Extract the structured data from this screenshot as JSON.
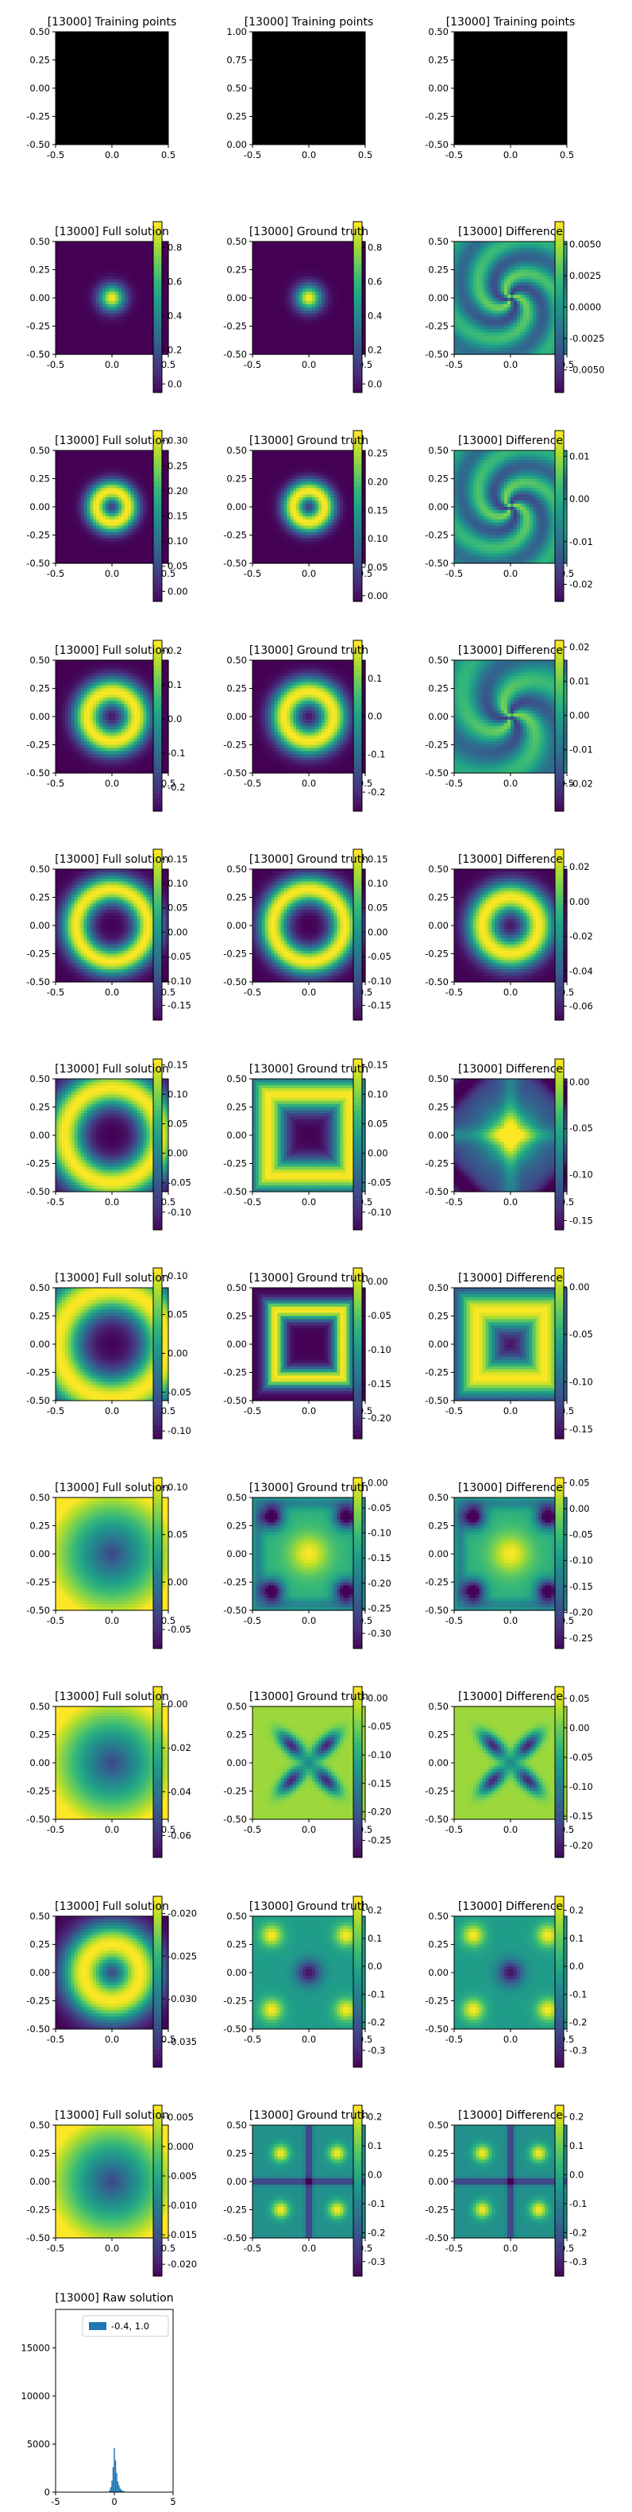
{
  "figure": {
    "background": "#ffffff",
    "colormap": "viridis",
    "training_fill": "#000000"
  },
  "chart_data": [
    {
      "type": "image",
      "title": "[13000] Training points",
      "xlim": [
        -0.5,
        0.5
      ],
      "ylim": [
        -0.5,
        0.5
      ],
      "xticks": [
        "-0.5",
        "0.0",
        "0.5"
      ],
      "yticks": [
        "0.50",
        "0.25",
        "0.00",
        "-0.25",
        "-0.50"
      ],
      "fill": "black"
    },
    {
      "type": "image",
      "title": "[13000] Training points",
      "xlim": [
        -0.5,
        0.5
      ],
      "ylim": [
        0.0,
        1.0
      ],
      "xticks": [
        "-0.5",
        "0.0",
        "0.5"
      ],
      "yticks": [
        "1.00",
        "0.75",
        "0.50",
        "0.25",
        "0.00"
      ],
      "fill": "black"
    },
    {
      "type": "image",
      "title": "[13000] Training points",
      "xlim": [
        -0.5,
        0.5
      ],
      "ylim": [
        -0.5,
        0.5
      ],
      "xticks": [
        "-0.5",
        "0.0",
        "0.5"
      ],
      "yticks": [
        "0.50",
        "0.25",
        "0.00",
        "-0.25",
        "-0.50"
      ],
      "fill": "black"
    },
    {
      "type": "heatmap",
      "title": "[13000] Full solution",
      "xticks": [
        "-0.5",
        "0.0",
        "0.5"
      ],
      "yticks": [
        "0.50",
        "0.25",
        "0.00",
        "-0.25",
        "-0.50"
      ],
      "colorbar": {
        "ticks": [
          "0.8",
          "0.6",
          "0.4",
          "0.2",
          "0.0"
        ],
        "min": -0.05,
        "max": 0.95
      },
      "pattern": {
        "kind": "gauss",
        "width": 0.08
      }
    },
    {
      "type": "heatmap",
      "title": "[13000] Ground truth",
      "xticks": [
        "-0.5",
        "0.0",
        "0.5"
      ],
      "yticks": [
        "0.50",
        "0.25",
        "0.00",
        "-0.25",
        "-0.50"
      ],
      "colorbar": {
        "ticks": [
          "0.8",
          "0.6",
          "0.4",
          "0.2",
          "0.0"
        ],
        "min": -0.05,
        "max": 0.95
      },
      "pattern": {
        "kind": "gauss",
        "width": 0.08
      }
    },
    {
      "type": "heatmap",
      "title": "[13000] Difference",
      "xticks": [
        "-0.5",
        "0.0",
        "0.5"
      ],
      "yticks": [
        "0.50",
        "0.25",
        "0.00",
        "-0.25",
        "-0.50"
      ],
      "colorbar": {
        "ticks": [
          "0.0050",
          "0.0025",
          "0.0000",
          "-0.0025",
          "-0.0050"
        ],
        "min": -0.0068,
        "max": 0.0068
      },
      "pattern": {
        "kind": "wavy",
        "rings": 3
      }
    },
    {
      "type": "heatmap",
      "title": "[13000] Full solution",
      "xticks": [
        "-0.5",
        "0.0",
        "0.5"
      ],
      "yticks": [
        "0.50",
        "0.25",
        "0.00",
        "-0.25",
        "-0.50"
      ],
      "colorbar": {
        "ticks": [
          "0.30",
          "0.25",
          "0.20",
          "0.15",
          "0.10",
          "0.05",
          "0.00"
        ],
        "min": -0.02,
        "max": 0.32
      },
      "pattern": {
        "kind": "ring",
        "r": 0.14,
        "w": 0.07
      }
    },
    {
      "type": "heatmap",
      "title": "[13000] Ground truth",
      "xticks": [
        "-0.5",
        "0.0",
        "0.5"
      ],
      "yticks": [
        "0.50",
        "0.25",
        "0.00",
        "-0.25",
        "-0.50"
      ],
      "colorbar": {
        "ticks": [
          "0.25",
          "0.20",
          "0.15",
          "0.10",
          "0.05",
          "0.00"
        ],
        "min": -0.01,
        "max": 0.29
      },
      "pattern": {
        "kind": "ring",
        "r": 0.14,
        "w": 0.07
      }
    },
    {
      "type": "heatmap",
      "title": "[13000] Difference",
      "xticks": [
        "-0.5",
        "0.0",
        "0.5"
      ],
      "yticks": [
        "0.50",
        "0.25",
        "0.00",
        "-0.25",
        "-0.50"
      ],
      "colorbar": {
        "ticks": [
          "0.01",
          "0.00",
          "-0.01",
          "-0.02"
        ],
        "min": -0.024,
        "max": 0.016
      },
      "pattern": {
        "kind": "wavy",
        "rings": 3
      }
    },
    {
      "type": "heatmap",
      "title": "[13000] Full solution",
      "xticks": [
        "-0.5",
        "0.0",
        "0.5"
      ],
      "yticks": [
        "0.50",
        "0.25",
        "0.00",
        "-0.25",
        "-0.50"
      ],
      "colorbar": {
        "ticks": [
          "0.2",
          "0.1",
          "0.0",
          "-0.1",
          "-0.2"
        ],
        "min": -0.27,
        "max": 0.23
      },
      "pattern": {
        "kind": "ring",
        "r": 0.22,
        "w": 0.09
      }
    },
    {
      "type": "heatmap",
      "title": "[13000] Ground truth",
      "xticks": [
        "-0.5",
        "0.0",
        "0.5"
      ],
      "yticks": [
        "0.50",
        "0.25",
        "0.00",
        "-0.25",
        "-0.50"
      ],
      "colorbar": {
        "ticks": [
          "0.1",
          "0.0",
          "-0.1",
          "-0.2"
        ],
        "min": -0.25,
        "max": 0.2
      },
      "pattern": {
        "kind": "ring",
        "r": 0.22,
        "w": 0.09
      }
    },
    {
      "type": "heatmap",
      "title": "[13000] Difference",
      "xticks": [
        "-0.5",
        "0.0",
        "0.5"
      ],
      "yticks": [
        "0.50",
        "0.25",
        "0.00",
        "-0.25",
        "-0.50"
      ],
      "colorbar": {
        "ticks": [
          "0.02",
          "0.01",
          "0.00",
          "-0.01",
          "-0.02"
        ],
        "min": -0.028,
        "max": 0.022
      },
      "pattern": {
        "kind": "wavy",
        "rings": 2
      }
    },
    {
      "type": "heatmap",
      "title": "[13000] Full solution",
      "xticks": [
        "-0.5",
        "0.0",
        "0.5"
      ],
      "yticks": [
        "0.50",
        "0.25",
        "0.00",
        "-0.25",
        "-0.50"
      ],
      "colorbar": {
        "ticks": [
          "0.15",
          "0.10",
          "0.05",
          "0.00",
          "-0.05",
          "-0.10",
          "-0.15"
        ],
        "min": -0.18,
        "max": 0.17
      },
      "pattern": {
        "kind": "ring",
        "r": 0.32,
        "w": 0.09
      }
    },
    {
      "type": "heatmap",
      "title": "[13000] Ground truth",
      "xticks": [
        "-0.5",
        "0.0",
        "0.5"
      ],
      "yticks": [
        "0.50",
        "0.25",
        "0.00",
        "-0.25",
        "-0.50"
      ],
      "colorbar": {
        "ticks": [
          "0.15",
          "0.10",
          "0.05",
          "0.00",
          "-0.05",
          "-0.10",
          "-0.15"
        ],
        "min": -0.18,
        "max": 0.17
      },
      "pattern": {
        "kind": "ring",
        "r": 0.32,
        "w": 0.09
      }
    },
    {
      "type": "heatmap",
      "title": "[13000] Difference",
      "xticks": [
        "-0.5",
        "0.0",
        "0.5"
      ],
      "yticks": [
        "0.50",
        "0.25",
        "0.00",
        "-0.25",
        "-0.50"
      ],
      "colorbar": {
        "ticks": [
          "0.02",
          "0.00",
          "-0.02",
          "-0.04",
          "-0.06"
        ],
        "min": -0.068,
        "max": 0.03
      },
      "pattern": {
        "kind": "ring",
        "r": 0.25,
        "w": 0.1
      }
    },
    {
      "type": "heatmap",
      "title": "[13000] Full solution",
      "xticks": [
        "-0.5",
        "0.0",
        "0.5"
      ],
      "yticks": [
        "0.50",
        "0.25",
        "0.00",
        "-0.25",
        "-0.50"
      ],
      "colorbar": {
        "ticks": [
          "0.15",
          "0.10",
          "0.05",
          "0.00",
          "-0.05",
          "-0.10"
        ],
        "min": -0.13,
        "max": 0.16
      },
      "pattern": {
        "kind": "ring",
        "r": 0.42,
        "w": 0.12
      }
    },
    {
      "type": "heatmap",
      "title": "[13000] Ground truth",
      "xticks": [
        "-0.5",
        "0.0",
        "0.5"
      ],
      "yticks": [
        "0.50",
        "0.25",
        "0.00",
        "-0.25",
        "-0.50"
      ],
      "colorbar": {
        "ticks": [
          "0.15",
          "0.10",
          "0.05",
          "0.00",
          "-0.05",
          "-0.10"
        ],
        "min": -0.13,
        "max": 0.16
      },
      "pattern": {
        "kind": "squarering",
        "r": 0.36,
        "w": 0.1
      }
    },
    {
      "type": "heatmap",
      "title": "[13000] Difference",
      "xticks": [
        "-0.5",
        "0.0",
        "0.5"
      ],
      "yticks": [
        "0.50",
        "0.25",
        "0.00",
        "-0.25",
        "-0.50"
      ],
      "colorbar": {
        "ticks": [
          "0.00",
          "-0.05",
          "-0.10",
          "-0.15"
        ],
        "min": -0.16,
        "max": 0.025
      },
      "pattern": {
        "kind": "cross"
      }
    },
    {
      "type": "heatmap",
      "title": "[13000] Full solution",
      "xticks": [
        "-0.5",
        "0.0",
        "0.5"
      ],
      "yticks": [
        "0.50",
        "0.25",
        "0.00",
        "-0.25",
        "-0.50"
      ],
      "colorbar": {
        "ticks": [
          "0.10",
          "0.05",
          "0.00",
          "-0.05",
          "-0.10"
        ],
        "min": -0.11,
        "max": 0.11
      },
      "pattern": {
        "kind": "ring",
        "r": 0.48,
        "w": 0.15
      }
    },
    {
      "type": "heatmap",
      "title": "[13000] Ground truth",
      "xticks": [
        "-0.5",
        "0.0",
        "0.5"
      ],
      "yticks": [
        "0.50",
        "0.25",
        "0.00",
        "-0.25",
        "-0.50"
      ],
      "colorbar": {
        "ticks": [
          "0.00",
          "-0.05",
          "-0.10",
          "-0.15",
          "-0.20"
        ],
        "min": -0.23,
        "max": 0.02
      },
      "pattern": {
        "kind": "squarering",
        "r": 0.3,
        "w": 0.06
      }
    },
    {
      "type": "heatmap",
      "title": "[13000] Difference",
      "xticks": [
        "-0.5",
        "0.0",
        "0.5"
      ],
      "yticks": [
        "0.50",
        "0.25",
        "0.00",
        "-0.25",
        "-0.50"
      ],
      "colorbar": {
        "ticks": [
          "0.00",
          "-0.05",
          "-0.10",
          "-0.15"
        ],
        "min": -0.16,
        "max": 0.02
      },
      "pattern": {
        "kind": "squarering",
        "r": 0.3,
        "w": 0.12
      }
    },
    {
      "type": "heatmap",
      "title": "[13000] Full solution",
      "xticks": [
        "-0.5",
        "0.0",
        "0.5"
      ],
      "yticks": [
        "0.50",
        "0.25",
        "0.00",
        "-0.25",
        "-0.50"
      ],
      "colorbar": {
        "ticks": [
          "0.10",
          "0.05",
          "0.00",
          "-0.05"
        ],
        "min": -0.07,
        "max": 0.11
      },
      "pattern": {
        "kind": "radial"
      }
    },
    {
      "type": "heatmap",
      "title": "[13000] Ground truth",
      "xticks": [
        "-0.5",
        "0.0",
        "0.5"
      ],
      "yticks": [
        "0.50",
        "0.25",
        "0.00",
        "-0.25",
        "-0.50"
      ],
      "colorbar": {
        "ticks": [
          "0.00",
          "-0.05",
          "-0.10",
          "-0.15",
          "-0.20",
          "-0.25",
          "-0.30"
        ],
        "min": -0.33,
        "max": 0.01
      },
      "pattern": {
        "kind": "corners"
      }
    },
    {
      "type": "heatmap",
      "title": "[13000] Difference",
      "xticks": [
        "-0.5",
        "0.0",
        "0.5"
      ],
      "yticks": [
        "0.50",
        "0.25",
        "0.00",
        "-0.25",
        "-0.50"
      ],
      "colorbar": {
        "ticks": [
          "0.05",
          "0.00",
          "-0.05",
          "-0.10",
          "-0.15",
          "-0.20",
          "-0.25"
        ],
        "min": -0.27,
        "max": 0.06
      },
      "pattern": {
        "kind": "corners"
      }
    },
    {
      "type": "heatmap",
      "title": "[13000] Full solution",
      "xticks": [
        "-0.5",
        "0.0",
        "0.5"
      ],
      "yticks": [
        "0.50",
        "0.25",
        "0.00",
        "-0.25",
        "-0.50"
      ],
      "colorbar": {
        "ticks": [
          "0.00",
          "-0.02",
          "-0.04",
          "-0.06"
        ],
        "min": -0.07,
        "max": 0.008
      },
      "pattern": {
        "kind": "radial"
      }
    },
    {
      "type": "heatmap",
      "title": "[13000] Ground truth",
      "xticks": [
        "-0.5",
        "0.0",
        "0.5"
      ],
      "yticks": [
        "0.50",
        "0.25",
        "0.00",
        "-0.25",
        "-0.50"
      ],
      "colorbar": {
        "ticks": [
          "0.00",
          "-0.05",
          "-0.10",
          "-0.15",
          "-0.20",
          "-0.25"
        ],
        "min": -0.28,
        "max": 0.02
      },
      "pattern": {
        "kind": "xshape"
      }
    },
    {
      "type": "heatmap",
      "title": "[13000] Difference",
      "xticks": [
        "-0.5",
        "0.0",
        "0.5"
      ],
      "yticks": [
        "0.50",
        "0.25",
        "0.00",
        "-0.25",
        "-0.50"
      ],
      "colorbar": {
        "ticks": [
          "0.05",
          "0.00",
          "-0.05",
          "-0.10",
          "-0.15",
          "-0.20"
        ],
        "min": -0.22,
        "max": 0.07
      },
      "pattern": {
        "kind": "xshape"
      }
    },
    {
      "type": "heatmap",
      "title": "[13000] Full solution",
      "xticks": [
        "-0.5",
        "0.0",
        "0.5"
      ],
      "yticks": [
        "0.50",
        "0.25",
        "0.00",
        "-0.25",
        "-0.50"
      ],
      "colorbar": {
        "ticks": [
          "-0.020",
          "-0.025",
          "-0.030",
          "-0.035"
        ],
        "min": -0.038,
        "max": -0.018
      },
      "pattern": {
        "kind": "ring",
        "r": 0.25,
        "w": 0.14
      }
    },
    {
      "type": "heatmap",
      "title": "[13000] Ground truth",
      "xticks": [
        "-0.5",
        "0.0",
        "0.5"
      ],
      "yticks": [
        "0.50",
        "0.25",
        "0.00",
        "-0.25",
        "-0.50"
      ],
      "colorbar": {
        "ticks": [
          "0.2",
          "0.1",
          "0.0",
          "-0.1",
          "-0.2",
          "-0.3"
        ],
        "min": -0.36,
        "max": 0.25
      },
      "pattern": {
        "kind": "blobs"
      }
    },
    {
      "type": "heatmap",
      "title": "[13000] Difference",
      "xticks": [
        "-0.5",
        "0.0",
        "0.5"
      ],
      "yticks": [
        "0.50",
        "0.25",
        "0.00",
        "-0.25",
        "-0.50"
      ],
      "colorbar": {
        "ticks": [
          "0.2",
          "0.1",
          "0.0",
          "-0.1",
          "-0.2",
          "-0.3"
        ],
        "min": -0.36,
        "max": 0.25
      },
      "pattern": {
        "kind": "blobs"
      }
    },
    {
      "type": "heatmap",
      "title": "[13000] Full solution",
      "xticks": [
        "-0.5",
        "0.0",
        "0.5"
      ],
      "yticks": [
        "0.50",
        "0.25",
        "0.00",
        "-0.25",
        "-0.50"
      ],
      "colorbar": {
        "ticks": [
          "0.005",
          "0.000",
          "-0.005",
          "-0.010",
          "-0.015",
          "-0.020"
        ],
        "min": -0.022,
        "max": 0.007
      },
      "pattern": {
        "kind": "radial"
      }
    },
    {
      "type": "heatmap",
      "title": "[13000] Ground truth",
      "xticks": [
        "-0.5",
        "0.0",
        "0.5"
      ],
      "yticks": [
        "0.50",
        "0.25",
        "0.00",
        "-0.25",
        "-0.50"
      ],
      "colorbar": {
        "ticks": [
          "0.2",
          "0.1",
          "0.0",
          "-0.1",
          "-0.2",
          "-0.3"
        ],
        "min": -0.35,
        "max": 0.24
      },
      "pattern": {
        "kind": "plus"
      }
    },
    {
      "type": "heatmap",
      "title": "[13000] Difference",
      "xticks": [
        "-0.5",
        "0.0",
        "0.5"
      ],
      "yticks": [
        "0.50",
        "0.25",
        "0.00",
        "-0.25",
        "-0.50"
      ],
      "colorbar": {
        "ticks": [
          "0.2",
          "0.1",
          "0.0",
          "-0.1",
          "-0.2",
          "-0.3"
        ],
        "min": -0.35,
        "max": 0.24
      },
      "pattern": {
        "kind": "plus"
      }
    },
    {
      "type": "histogram",
      "title": "[13000] Raw solution",
      "xlim": [
        -5,
        5
      ],
      "ylim": [
        0,
        19000
      ],
      "xticks": [
        "-5",
        "0",
        "5"
      ],
      "yticks": [
        "15000",
        "10000",
        "5000",
        "0"
      ],
      "series": [
        {
          "name": "-0.4, 1.0",
          "color": "#1f77b4",
          "bins": [
            {
              "x": -0.4,
              "count": 200
            },
            {
              "x": -0.3,
              "count": 500
            },
            {
              "x": -0.2,
              "count": 1200
            },
            {
              "x": -0.1,
              "count": 2600
            },
            {
              "x": 0.0,
              "count": 4600
            },
            {
              "x": 0.1,
              "count": 3300
            },
            {
              "x": 0.2,
              "count": 2000
            },
            {
              "x": 0.3,
              "count": 1100
            },
            {
              "x": 0.4,
              "count": 700
            },
            {
              "x": 0.5,
              "count": 400
            },
            {
              "x": 0.6,
              "count": 250
            },
            {
              "x": 0.7,
              "count": 150
            },
            {
              "x": 0.8,
              "count": 90
            },
            {
              "x": 0.9,
              "count": 50
            },
            {
              "x": 1.0,
              "count": 30
            }
          ]
        }
      ]
    }
  ]
}
